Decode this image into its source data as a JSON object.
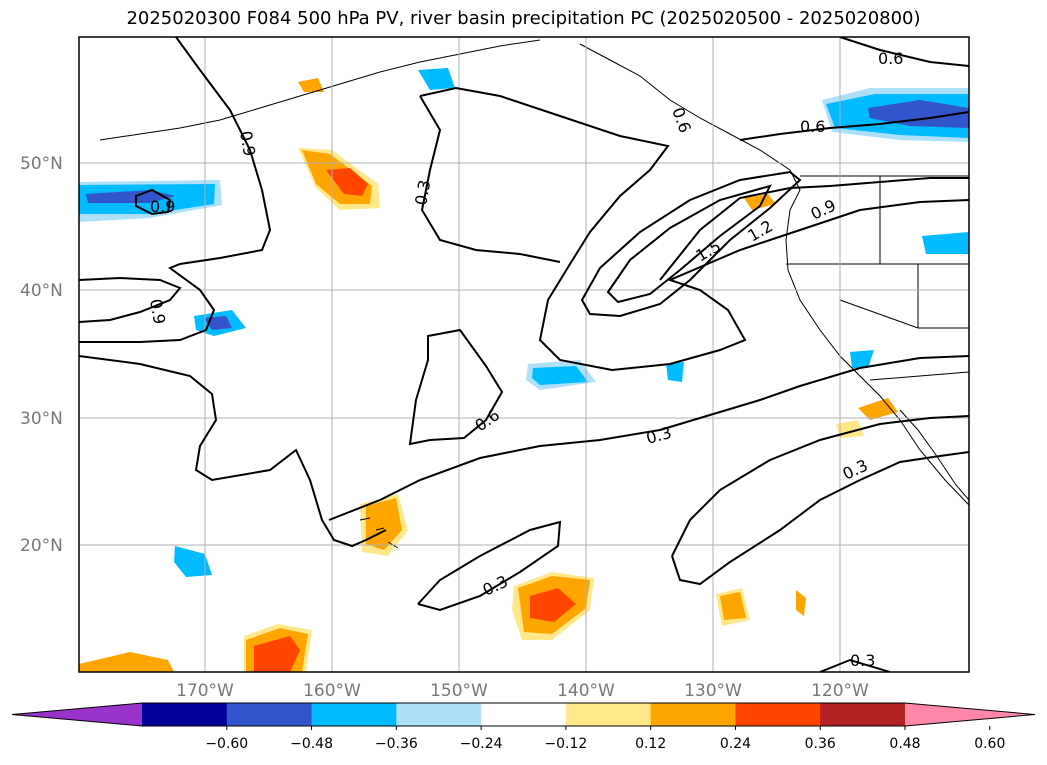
{
  "title": "2025020300 F084 500 hPa PV, river basin precipitation PC (2025020500 - 2025020800)",
  "map": {
    "lat_labels": [
      "50°N",
      "40°N",
      "30°N",
      "20°N"
    ],
    "lon_labels": [
      "170°W",
      "160°W",
      "150°W",
      "140°W",
      "130°W",
      "120°W"
    ],
    "contour_labels": [
      "0.6",
      "0.6",
      "0.9",
      "0.3",
      "0.9",
      "0.9",
      "0.6",
      "0.3",
      "0.3",
      "1.5",
      "1.2",
      "0.9",
      "0.3",
      "0.3",
      "0.6"
    ],
    "contour_line_color": "#000000",
    "grid_color": "#b0b0b0"
  },
  "colorbar": {
    "ticks": [
      "−0.60",
      "−0.48",
      "−0.36",
      "−0.24",
      "−0.12",
      "0.12",
      "0.24",
      "0.36",
      "0.48",
      "0.60"
    ],
    "colors": [
      "#9933cc",
      "#000099",
      "#3355cc",
      "#00bbff",
      "#aee0fa",
      "#ffffff",
      "#ffe88a",
      "#ffa500",
      "#ff4500",
      "#b22222",
      "#ff88aa"
    ]
  }
}
